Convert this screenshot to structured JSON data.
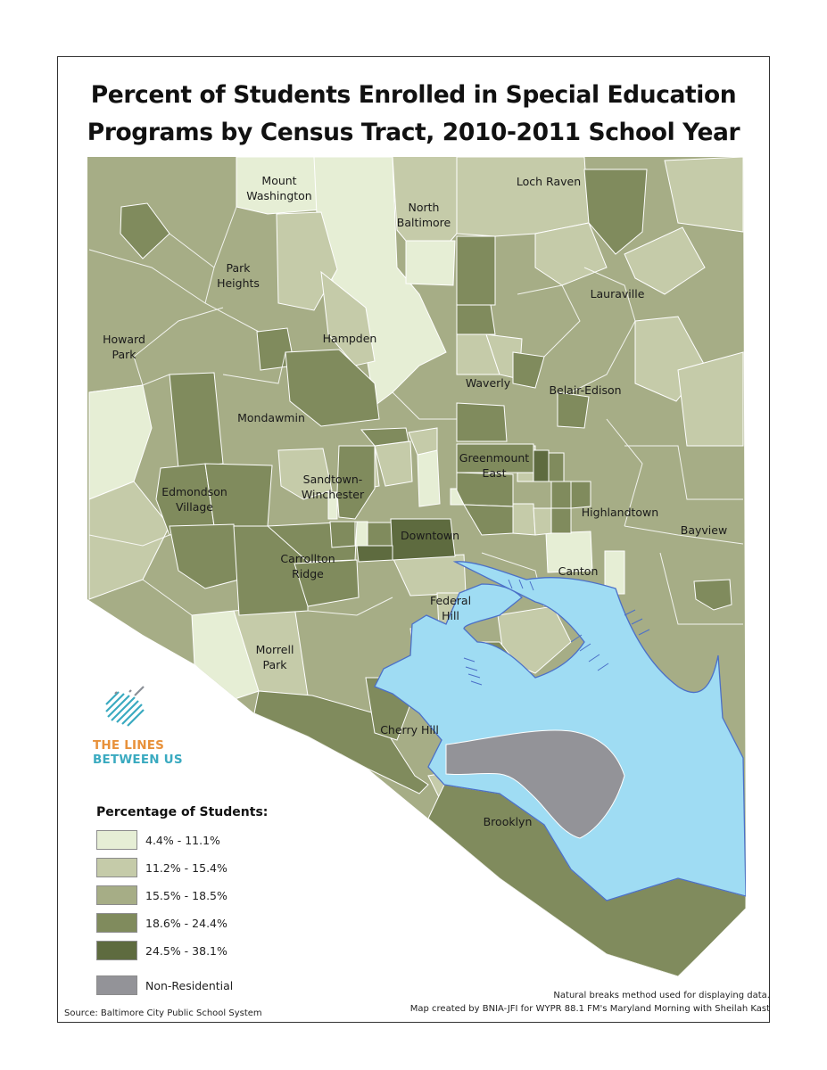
{
  "title": {
    "line1": "Percent of Students Enrolled in Special Education",
    "line2": "Programs by Census Tract, 2010-2011 School Year"
  },
  "neighborhoods": [
    {
      "lines": [
        "Mount",
        "Washington"
      ]
    },
    {
      "lines": [
        "North",
        "Baltimore"
      ]
    },
    {
      "lines": [
        "Loch Raven"
      ]
    },
    {
      "lines": [
        "Park",
        "Heights"
      ]
    },
    {
      "lines": [
        "Lauraville"
      ]
    },
    {
      "lines": [
        "Howard",
        "Park"
      ]
    },
    {
      "lines": [
        "Hampden"
      ]
    },
    {
      "lines": [
        "Waverly"
      ]
    },
    {
      "lines": [
        "Belair-Edison"
      ]
    },
    {
      "lines": [
        "Mondawmin"
      ]
    },
    {
      "lines": [
        "Greenmount",
        "East"
      ]
    },
    {
      "lines": [
        "Sandtown-",
        "Winchester"
      ]
    },
    {
      "lines": [
        "Edmondson",
        "Village"
      ]
    },
    {
      "lines": [
        "Highlandtown"
      ]
    },
    {
      "lines": [
        "Bayview"
      ]
    },
    {
      "lines": [
        "Downtown"
      ]
    },
    {
      "lines": [
        "Carrollton",
        "Ridge"
      ]
    },
    {
      "lines": [
        "Canton"
      ]
    },
    {
      "lines": [
        "Federal",
        "Hill"
      ]
    },
    {
      "lines": [
        "Morrell",
        "Park"
      ]
    },
    {
      "lines": [
        "Cherry Hill"
      ]
    },
    {
      "lines": [
        "Brooklyn"
      ]
    }
  ],
  "legend": {
    "title": "Percentage of Students:",
    "items": [
      {
        "label": "4.4% - 11.1%",
        "color": "#e6eed5"
      },
      {
        "label": "11.2% - 15.4%",
        "color": "#c5cba9"
      },
      {
        "label": "15.5% - 18.5%",
        "color": "#a6ad86"
      },
      {
        "label": "18.6% - 24.4%",
        "color": "#808b5d"
      },
      {
        "label": "24.5% - 38.1%",
        "color": "#5e6b3f"
      },
      {
        "label": "Non-Residential",
        "color": "#939398"
      }
    ]
  },
  "logo": {
    "line1": "THE LINES",
    "line2": "BETWEEN US",
    "color1": "#e8913a",
    "color2": "#3aaac0"
  },
  "notes": {
    "method": "Natural breaks method used for displaying data.",
    "credit": "Map created by BNIA-JFI for WYPR 88.1 FM's Maryland Morning with Sheilah Kast",
    "source": "Source: Baltimore City Public School System"
  },
  "colors": {
    "water": "#9fdcf3",
    "water_edge": "#4b70c8",
    "tract_border": "#ffffff"
  }
}
